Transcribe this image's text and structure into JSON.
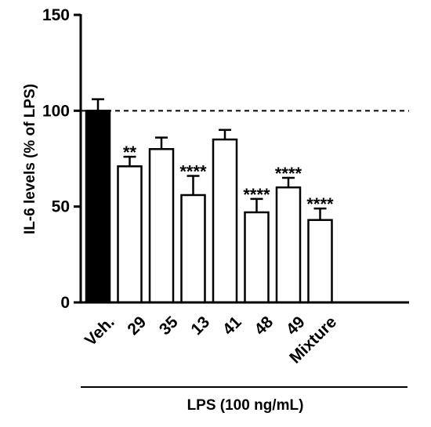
{
  "chart_data": {
    "type": "bar",
    "categories": [
      "Veh.",
      "29",
      "35",
      "13",
      "41",
      "48",
      "49",
      "Mixture"
    ],
    "values": [
      100,
      71,
      80,
      56,
      85,
      47,
      60,
      43
    ],
    "errors": [
      6,
      5,
      6,
      10,
      5,
      7,
      5,
      6
    ],
    "significance": [
      "",
      "**",
      "",
      "****",
      "",
      "****",
      "****",
      "****"
    ],
    "bar_fill": [
      "#000000",
      "#ffffff",
      "#ffffff",
      "#ffffff",
      "#ffffff",
      "#ffffff",
      "#ffffff",
      "#ffffff"
    ],
    "ylabel": "IL-6 levels (% of LPS)",
    "group_label": "LPS (100 ng/mL)",
    "ylim": [
      0,
      150
    ],
    "yticks": [
      0,
      50,
      100,
      150
    ],
    "reference_line": 100,
    "grid": false
  }
}
